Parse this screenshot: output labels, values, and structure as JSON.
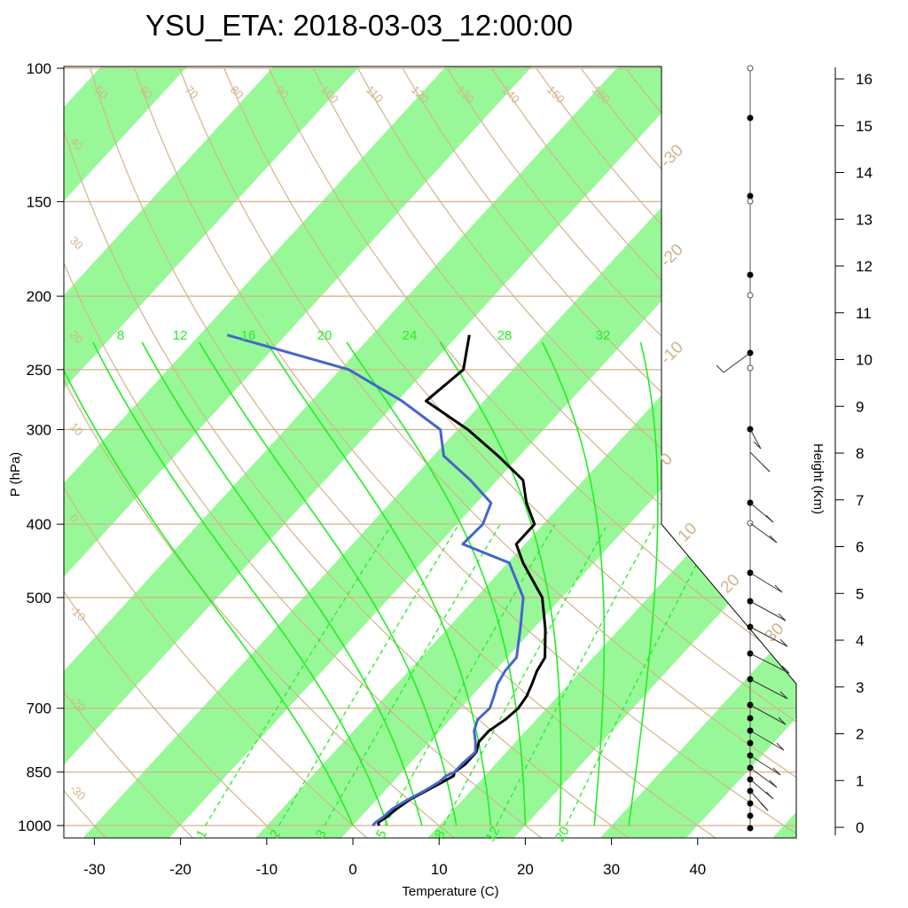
{
  "title": "YSU_ETA: 2018-03-03_12:00:00",
  "colors": {
    "isotherm_band": "#98f898",
    "isobar": "#d2b48c",
    "adiabat": "#d2b48c",
    "mixing_ratio": "#22ee22",
    "temperature": "#000000",
    "dewpoint": "#4466cc"
  },
  "chart_data": {
    "type": "line",
    "chart_kind": "skew-T log-P",
    "xlabel": "Temperature (C)",
    "ylabel": "P (hPa)",
    "y2label": "Height (Km)",
    "x_ticks": [
      -30,
      -20,
      -10,
      0,
      10,
      20,
      30,
      40
    ],
    "y_ticks": [
      100,
      150,
      200,
      250,
      300,
      400,
      500,
      700,
      850,
      1000
    ],
    "height_ticks": [
      0,
      1,
      2,
      3,
      4,
      5,
      6,
      7,
      8,
      9,
      10,
      11,
      12,
      13,
      14,
      15,
      16
    ],
    "xlim": [
      -34,
      36
    ],
    "ylim": [
      1050,
      100
    ],
    "y_scale": "log",
    "mixing_ratio_solid_labels": [
      "8",
      "12",
      "16",
      "20",
      "24",
      "28",
      "32"
    ],
    "mixing_ratio_dashed_labels": [
      "1",
      "2",
      "3",
      "5",
      "8",
      "12",
      "20"
    ],
    "theta_labels": [
      "50",
      "60",
      "70",
      "80",
      "90",
      "100",
      "110",
      "120",
      "130",
      "140",
      "150",
      "160"
    ],
    "theta_left_labels": [
      "40",
      "30",
      "20",
      "10",
      "0",
      "-10",
      "-20",
      "-30"
    ],
    "skew_right_labels": [
      "-30",
      "-20",
      "-10",
      "0",
      "10",
      "20",
      "30"
    ],
    "series": [
      {
        "name": "Temperature",
        "pressure": [
          1000,
          990,
          975,
          950,
          925,
          900,
          875,
          860,
          850,
          830,
          800,
          775,
          750,
          725,
          700,
          675,
          650,
          625,
          600,
          550,
          500,
          450,
          425,
          400,
          375,
          350,
          325,
          300,
          275,
          250,
          225
        ],
        "values": [
          3.0,
          2.6,
          3.0,
          3.3,
          3.8,
          4.8,
          5.8,
          6.4,
          6.1,
          6.5,
          6.5,
          5.7,
          5.7,
          6.4,
          6.7,
          6.4,
          5.7,
          4.9,
          4.4,
          1.4,
          -2.3,
          -8.2,
          -11.0,
          -11.0,
          -14.2,
          -17.0,
          -22.5,
          -28.8,
          -36.7,
          -35.7,
          -38.7
        ]
      },
      {
        "name": "Dewpoint",
        "pressure": [
          1000,
          990,
          975,
          950,
          925,
          900,
          875,
          860,
          850,
          830,
          800,
          775,
          750,
          725,
          700,
          675,
          650,
          625,
          600,
          550,
          500,
          450,
          425,
          400,
          375,
          350,
          325,
          300,
          275,
          250,
          225
        ],
        "values": [
          2.3,
          2.3,
          2.6,
          2.8,
          3.6,
          4.6,
          5.4,
          5.5,
          6.1,
          6.1,
          6.4,
          5.3,
          4.0,
          3.2,
          3.4,
          2.6,
          1.7,
          1.2,
          1.1,
          -1.5,
          -4.5,
          -9.8,
          -17.2,
          -17.0,
          -18.3,
          -23.1,
          -28.8,
          -32.0,
          -39.5,
          -49.0,
          -66.8
        ]
      }
    ],
    "wind_barbs_column": true
  }
}
